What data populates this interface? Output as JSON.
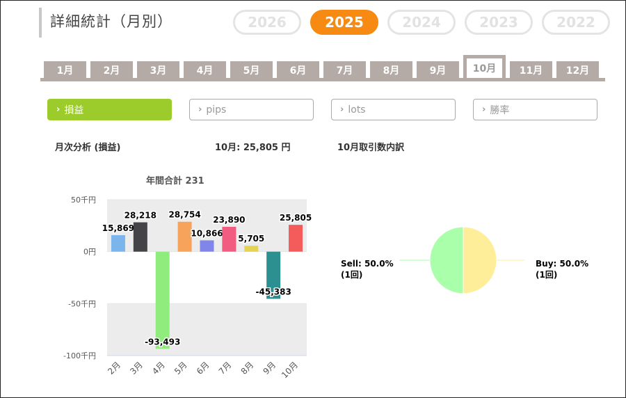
{
  "header": {
    "title": "詳細統計（月別）"
  },
  "years": [
    {
      "label": "2026",
      "active": false
    },
    {
      "label": "2025",
      "active": true
    },
    {
      "label": "2024",
      "active": false
    },
    {
      "label": "2023",
      "active": false
    },
    {
      "label": "2022",
      "active": false
    }
  ],
  "months": [
    {
      "label": "1月",
      "active": false
    },
    {
      "label": "2月",
      "active": false
    },
    {
      "label": "3月",
      "active": false
    },
    {
      "label": "4月",
      "active": false
    },
    {
      "label": "5月",
      "active": false
    },
    {
      "label": "6月",
      "active": false
    },
    {
      "label": "7月",
      "active": false
    },
    {
      "label": "8月",
      "active": false
    },
    {
      "label": "9月",
      "active": false
    },
    {
      "label": "10月",
      "active": true
    },
    {
      "label": "11月",
      "active": false
    },
    {
      "label": "12月",
      "active": false
    }
  ],
  "metrics": [
    {
      "label": "損益",
      "active": true
    },
    {
      "label": "pips",
      "active": false
    },
    {
      "label": "lots",
      "active": false
    },
    {
      "label": "勝率",
      "active": false
    }
  ],
  "analysis": {
    "heading": "月次分析 (損益)",
    "month_value": "10月:  25,805 円",
    "breakdown_heading": "10月取引数内訳"
  },
  "colors": {
    "accent": "#f78a12",
    "metric_active": "#9ccb2c",
    "tab_gray": "#b4aaa6"
  },
  "chart_data": [
    {
      "type": "bar",
      "title": "年間合計 231",
      "categories": [
        "2月",
        "3月",
        "4月",
        "5月",
        "6月",
        "7月",
        "8月",
        "9月",
        "10月"
      ],
      "values": [
        15869,
        28218,
        -93493,
        28754,
        10866,
        23890,
        5705,
        -45383,
        25805
      ],
      "data_labels": [
        "15,869",
        "28,218",
        "-93,493",
        "28,754",
        "10,866",
        "23,890",
        "5,705",
        "-45,383",
        "25,805"
      ],
      "colors": [
        "#7cb5ec",
        "#434348",
        "#90ed7d",
        "#f7a35c",
        "#8085e9",
        "#f15c80",
        "#e4d354",
        "#2b908f",
        "#f45b5b"
      ],
      "ylim": [
        -100000,
        50000
      ],
      "yticks": [
        50000,
        0,
        -50000,
        -100000
      ],
      "ytick_labels": [
        "50千円",
        "0円",
        "-50千円",
        "-100千円"
      ],
      "grid": true
    },
    {
      "type": "pie",
      "slices": [
        {
          "name": "Sell",
          "value": 50.0,
          "label": "Sell: 50.0%",
          "count": "(1回)",
          "color": "#aaffaa"
        },
        {
          "name": "Buy",
          "value": 50.0,
          "label": "Buy: 50.0%",
          "count": "(1回)",
          "color": "#ffee99"
        }
      ]
    }
  ]
}
